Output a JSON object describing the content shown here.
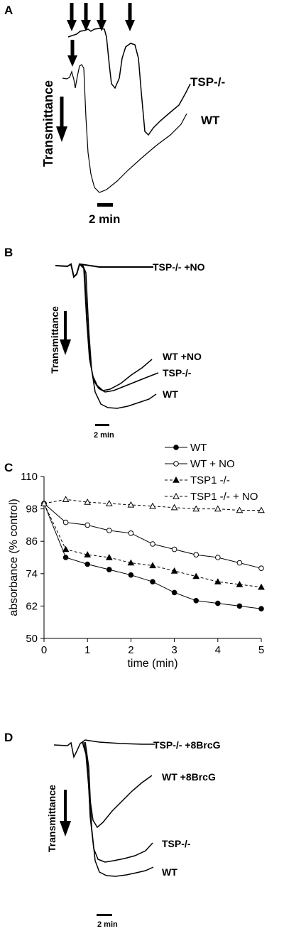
{
  "panels": {
    "A": {
      "letter": "A",
      "ylabel": "Transmittance",
      "scale_label": "2 min",
      "trace_labels": [
        "TSP-/-",
        "WT"
      ]
    },
    "B": {
      "letter": "B",
      "ylabel": "Transmittance",
      "scale_label": "2 min",
      "trace_labels": [
        "TSP-/-  +NO",
        "WT  +NO",
        "TSP-/-",
        "WT"
      ]
    },
    "D": {
      "letter": "D",
      "ylabel": "Transmittance",
      "scale_label": "2 min",
      "trace_labels": [
        "TSP-/-  +8BrcG",
        "WT  +8BrcG",
        "TSP-/-",
        "WT"
      ]
    }
  },
  "chart_data": {
    "type": "line",
    "letter": "C",
    "xlabel": "time (min)",
    "ylabel": "absorbance (% control)",
    "xlim": [
      0,
      5
    ],
    "ylim": [
      50,
      110
    ],
    "xticks": [
      0,
      1,
      2,
      3,
      4,
      5
    ],
    "yticks": [
      50,
      62,
      74,
      86,
      98,
      110
    ],
    "grid": false,
    "legend_position": "top-right",
    "x": [
      0,
      0.5,
      1,
      1.5,
      2,
      2.5,
      3,
      3.5,
      4,
      4.5,
      5
    ],
    "series": [
      {
        "name": "WT",
        "marker": "filled-circle",
        "dash": "solid",
        "values": [
          100,
          80,
          77.5,
          75.5,
          73.5,
          71,
          67,
          64,
          63,
          62,
          61
        ]
      },
      {
        "name": "WT + NO",
        "marker": "open-circle",
        "dash": "solid",
        "values": [
          100,
          93,
          92,
          90,
          89,
          85,
          83,
          81,
          80,
          78,
          76
        ]
      },
      {
        "name": "TSP1 -/-",
        "marker": "filled-triangle",
        "dash": "dashed",
        "values": [
          100,
          83,
          81,
          80,
          78,
          77,
          75,
          73,
          71,
          70,
          69
        ]
      },
      {
        "name": "TSP1 -/- + NO",
        "marker": "open-triangle",
        "dash": "dashed",
        "values": [
          100,
          101.5,
          100.5,
          100,
          99.5,
          99,
          98.5,
          98,
          98,
          97.5,
          97.5
        ]
      }
    ]
  }
}
